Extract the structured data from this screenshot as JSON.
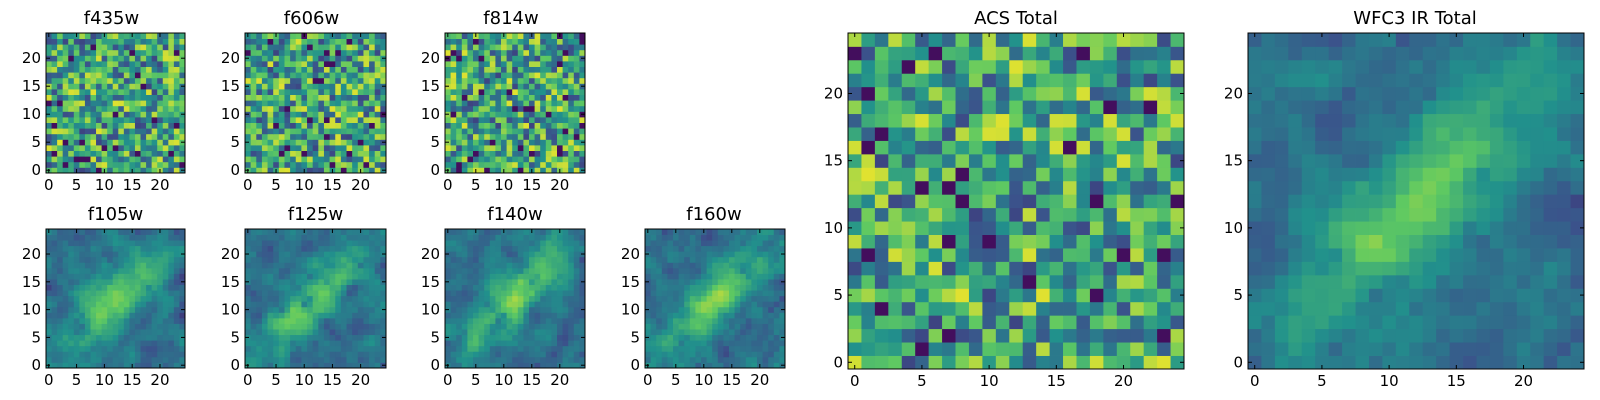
{
  "figure": {
    "panels": [
      {
        "key": "f435w",
        "title": "f435w"
      },
      {
        "key": "f606w",
        "title": "f606w"
      },
      {
        "key": "f814w",
        "title": "f814w"
      },
      {
        "key": "f105w",
        "title": "f105w"
      },
      {
        "key": "f125w",
        "title": "f125w"
      },
      {
        "key": "f140w",
        "title": "f140w"
      },
      {
        "key": "f160w",
        "title": "f160w"
      },
      {
        "key": "acs",
        "title": "ACS Total"
      },
      {
        "key": "wfc3",
        "title": "WFC3 IR Total"
      }
    ],
    "colormap": [
      "#440154",
      "#3b528b",
      "#21918c",
      "#5ec962",
      "#fde725"
    ]
  },
  "chart_data": [
    {
      "type": "heatmap",
      "title": "f435w",
      "grid_size": 25,
      "pattern": "noise",
      "xticks": [
        0,
        5,
        10,
        15,
        20
      ],
      "yticks": [
        0,
        5,
        10,
        15,
        20
      ],
      "xlim": [
        0,
        24
      ],
      "ylim": [
        0,
        24
      ]
    },
    {
      "type": "heatmap",
      "title": "f606w",
      "grid_size": 25,
      "pattern": "noise",
      "xticks": [
        0,
        5,
        10,
        15,
        20
      ],
      "yticks": [
        0,
        5,
        10,
        15,
        20
      ],
      "xlim": [
        0,
        24
      ],
      "ylim": [
        0,
        24
      ]
    },
    {
      "type": "heatmap",
      "title": "f814w",
      "grid_size": 25,
      "pattern": "noise",
      "xticks": [
        0,
        5,
        10,
        15,
        20
      ],
      "yticks": [
        0,
        5,
        10,
        15,
        20
      ],
      "xlim": [
        0,
        24
      ],
      "ylim": [
        0,
        24
      ]
    },
    {
      "type": "heatmap",
      "title": "f105w",
      "grid_size": 25,
      "pattern": "diagonal source",
      "xticks": [
        0,
        5,
        10,
        15,
        20
      ],
      "yticks": [
        0,
        5,
        10,
        15,
        20
      ],
      "xlim": [
        0,
        24
      ],
      "ylim": [
        0,
        24
      ]
    },
    {
      "type": "heatmap",
      "title": "f125w",
      "grid_size": 25,
      "pattern": "diagonal source",
      "xticks": [
        0,
        5,
        10,
        15,
        20
      ],
      "yticks": [
        0,
        5,
        10,
        15,
        20
      ],
      "xlim": [
        0,
        24
      ],
      "ylim": [
        0,
        24
      ]
    },
    {
      "type": "heatmap",
      "title": "f140w",
      "grid_size": 25,
      "pattern": "diagonal source",
      "xticks": [
        0,
        5,
        10,
        15,
        20
      ],
      "yticks": [
        0,
        5,
        10,
        15,
        20
      ],
      "xlim": [
        0,
        24
      ],
      "ylim": [
        0,
        24
      ]
    },
    {
      "type": "heatmap",
      "title": "f160w",
      "grid_size": 25,
      "pattern": "diagonal source",
      "xticks": [
        0,
        5,
        10,
        15,
        20
      ],
      "yticks": [
        0,
        5,
        10,
        15,
        20
      ],
      "xlim": [
        0,
        24
      ],
      "ylim": [
        0,
        24
      ]
    },
    {
      "type": "heatmap",
      "title": "ACS Total",
      "grid_size": 25,
      "pattern": "noise",
      "xticks": [
        0,
        5,
        10,
        15,
        20
      ],
      "yticks": [
        0,
        5,
        10,
        15,
        20
      ],
      "xlim": [
        0,
        24
      ],
      "ylim": [
        0,
        24
      ]
    },
    {
      "type": "heatmap",
      "title": "WFC3 IR Total",
      "grid_size": 25,
      "pattern": "diagonal source",
      "xticks": [
        0,
        5,
        10,
        15,
        20
      ],
      "yticks": [
        0,
        5,
        10,
        15,
        20
      ],
      "xlim": [
        0,
        24
      ],
      "ylim": [
        0,
        24
      ]
    }
  ]
}
